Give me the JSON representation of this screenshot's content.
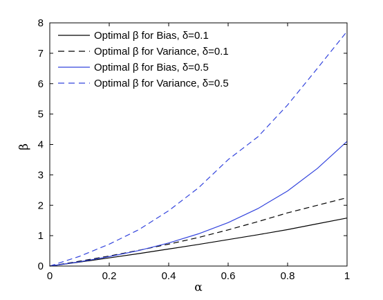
{
  "chart_data": {
    "type": "line",
    "xlabel": "α",
    "ylabel": "β",
    "xlim": [
      0,
      1
    ],
    "ylim": [
      0,
      8
    ],
    "grid": false,
    "legend_position": "top-left",
    "x_ticks": [
      "0",
      "0.2",
      "0.4",
      "0.6",
      "0.8",
      "1"
    ],
    "y_ticks": [
      "0",
      "1",
      "2",
      "3",
      "4",
      "5",
      "6",
      "7",
      "8"
    ],
    "x": [
      0,
      0.1,
      0.2,
      0.3,
      0.4,
      0.5,
      0.6,
      0.7,
      0.8,
      0.9,
      1.0
    ],
    "series": [
      {
        "name": "Optimal β for Bias, δ=0.1",
        "color": "#000000",
        "dash": "solid",
        "values": [
          0,
          0.13,
          0.27,
          0.41,
          0.56,
          0.71,
          0.87,
          1.03,
          1.2,
          1.39,
          1.58
        ]
      },
      {
        "name": "Optimal β for Variance, δ=0.1",
        "color": "#000000",
        "dash": "dashed",
        "values": [
          0,
          0.16,
          0.33,
          0.52,
          0.72,
          0.94,
          1.19,
          1.46,
          1.75,
          2.0,
          2.25
        ]
      },
      {
        "name": "Optimal β for Bias, δ=0.5",
        "color": "#3344dd",
        "dash": "solid",
        "values": [
          0,
          0.14,
          0.31,
          0.51,
          0.76,
          1.06,
          1.43,
          1.89,
          2.47,
          3.21,
          4.1
        ]
      },
      {
        "name": "Optimal β for Variance, δ=0.5",
        "color": "#3344dd",
        "dash": "dashed",
        "values": [
          0,
          0.32,
          0.72,
          1.2,
          1.82,
          2.57,
          3.5,
          4.25,
          5.3,
          6.5,
          7.72
        ]
      }
    ]
  }
}
